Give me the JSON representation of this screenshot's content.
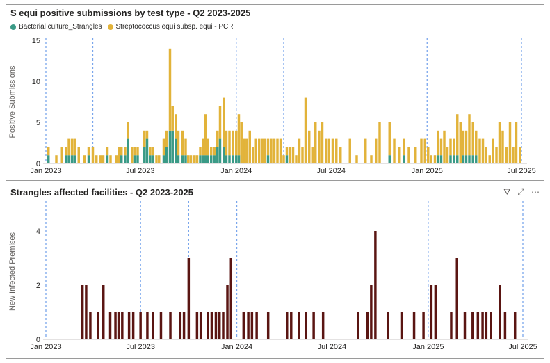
{
  "charts": [
    {
      "title": "S equi positive submissions by test type - Q2 2023-2025",
      "legend": [
        {
          "label": "Bacterial culture_Strangles",
          "color": "#3a9a86"
        },
        {
          "label": "Streptococcus equi subsp. equi - PCR",
          "color": "#e2b33a"
        }
      ]
    },
    {
      "title": "Strangles affected facilities - Q2 2023-2025",
      "toolbar": [
        {
          "name": "filter-icon",
          "glyph": "⛛"
        },
        {
          "name": "focus-mode-icon",
          "glyph": "⤢"
        },
        {
          "name": "more-options-icon",
          "glyph": "⋯"
        }
      ]
    }
  ],
  "chart_data": [
    {
      "type": "bar",
      "stacked": true,
      "title": "S equi positive submissions by test type - Q2 2023-2025",
      "ylabel": "Positive Submissions",
      "xlabel": "",
      "xlim": [
        "2023-01-01",
        "2025-07-01"
      ],
      "ylim": [
        0,
        15
      ],
      "yticks": [
        0,
        5,
        10,
        15
      ],
      "xticks": [
        {
          "date": "2023-01-01",
          "label": "Jan 2023"
        },
        {
          "date": "2023-07-01",
          "label": "Jul 2023"
        },
        {
          "date": "2024-01-01",
          "label": "Jan 2024"
        },
        {
          "date": "2024-07-01",
          "label": "Jul 2024"
        },
        {
          "date": "2025-01-01",
          "label": "Jan 2025"
        },
        {
          "date": "2025-07-01",
          "label": "Jul 2025"
        }
      ],
      "reference_lines": [
        "2023-01-01",
        "2023-04-01",
        "2024-01-01",
        "2024-04-01",
        "2025-01-01",
        "2025-07-01"
      ],
      "legend_position": "top-left",
      "grid": false,
      "x": [
        "2023-01-06",
        "2023-01-21",
        "2023-02-01",
        "2023-02-09",
        "2023-02-14",
        "2023-02-20",
        "2023-02-25",
        "2023-03-05",
        "2023-03-16",
        "2023-03-24",
        "2023-04-01",
        "2023-04-08",
        "2023-04-16",
        "2023-04-21",
        "2023-04-29",
        "2023-05-05",
        "2023-05-16",
        "2023-05-22",
        "2023-05-26",
        "2023-06-02",
        "2023-06-07",
        "2023-06-15",
        "2023-06-20",
        "2023-06-26",
        "2023-07-09",
        "2023-07-14",
        "2023-07-20",
        "2023-07-25",
        "2023-08-01",
        "2023-08-06",
        "2023-08-15",
        "2023-08-20",
        "2023-08-27",
        "2023-09-01",
        "2023-09-07",
        "2023-09-12",
        "2023-09-20",
        "2023-09-26",
        "2023-10-01",
        "2023-10-06",
        "2023-10-13",
        "2023-10-18",
        "2023-10-24",
        "2023-10-29",
        "2023-11-03",
        "2023-11-08",
        "2023-11-14",
        "2023-11-20",
        "2023-11-26",
        "2023-12-01",
        "2023-12-08",
        "2023-12-13",
        "2023-12-19",
        "2023-12-26",
        "2024-01-01",
        "2024-01-06",
        "2024-01-11",
        "2024-01-16",
        "2024-01-21",
        "2024-01-27",
        "2024-02-02",
        "2024-02-08",
        "2024-02-14",
        "2024-02-20",
        "2024-02-25",
        "2024-03-02",
        "2024-03-08",
        "2024-03-14",
        "2024-03-20",
        "2024-03-26",
        "2024-04-01",
        "2024-04-07",
        "2024-04-13",
        "2024-04-19",
        "2024-04-25",
        "2024-05-01",
        "2024-05-07",
        "2024-05-13",
        "2024-05-20",
        "2024-05-26",
        "2024-06-01",
        "2024-06-08",
        "2024-06-14",
        "2024-06-21",
        "2024-06-27",
        "2024-07-04",
        "2024-07-11",
        "2024-07-19",
        "2024-08-06",
        "2024-08-19",
        "2024-09-05",
        "2024-09-16",
        "2024-09-25",
        "2024-10-02",
        "2024-10-21",
        "2024-10-30",
        "2024-11-08",
        "2024-11-18",
        "2024-11-27",
        "2024-12-10",
        "2024-12-21",
        "2024-12-28",
        "2025-01-03",
        "2025-01-09",
        "2025-01-16",
        "2025-01-22",
        "2025-01-28",
        "2025-02-03",
        "2025-02-09",
        "2025-02-15",
        "2025-02-22",
        "2025-02-28",
        "2025-03-06",
        "2025-03-11",
        "2025-03-17",
        "2025-03-23",
        "2025-03-30",
        "2025-04-05",
        "2025-04-12",
        "2025-04-18",
        "2025-04-24",
        "2025-05-01",
        "2025-05-07",
        "2025-05-14",
        "2025-05-20",
        "2025-05-26",
        "2025-06-02",
        "2025-06-09",
        "2025-06-15",
        "2025-06-21",
        "2025-06-28"
      ],
      "series": [
        {
          "name": "Bacterial culture_Strangles",
          "values": [
            1,
            0,
            0,
            1,
            1,
            1,
            1,
            0,
            0,
            1,
            0,
            0,
            0,
            0,
            1,
            0,
            0,
            0,
            1,
            1,
            3,
            0,
            1,
            1,
            2,
            3,
            1,
            1,
            0,
            0,
            1,
            2,
            4,
            4,
            3,
            1,
            1,
            1,
            0,
            0,
            0,
            0,
            1,
            1,
            1,
            1,
            1,
            1,
            2,
            3,
            2,
            1,
            1,
            1,
            1,
            1,
            0,
            0,
            0,
            0,
            0,
            0,
            0,
            0,
            0,
            1,
            0,
            0,
            0,
            0,
            0,
            1,
            0,
            0,
            0,
            0,
            0,
            0,
            0,
            0,
            0,
            0,
            0,
            0,
            0,
            0,
            0,
            0,
            0,
            0,
            0,
            0,
            0,
            0,
            1,
            0,
            0,
            1,
            0,
            0,
            0,
            0,
            0,
            0,
            0,
            1,
            1,
            0,
            0,
            1,
            1,
            1,
            0,
            1,
            1,
            1,
            1,
            1,
            0,
            0,
            0,
            0,
            0,
            0,
            0,
            0,
            0,
            0,
            0,
            0,
            0
          ]
        },
        {
          "name": "Streptococcus equi subsp. equi - PCR",
          "values": [
            1,
            1,
            2,
            1,
            2,
            2,
            2,
            2,
            1,
            1,
            2,
            1,
            1,
            1,
            1,
            1,
            1,
            2,
            1,
            1,
            2,
            2,
            1,
            1,
            2,
            1,
            1,
            1,
            1,
            1,
            2,
            2,
            10,
            3,
            3,
            3,
            3,
            2,
            1,
            1,
            1,
            1,
            1,
            2,
            5,
            2,
            1,
            1,
            2,
            4,
            6,
            3,
            3,
            3,
            3,
            5,
            5,
            3,
            3,
            4,
            2,
            3,
            3,
            3,
            3,
            2,
            3,
            3,
            3,
            3,
            1,
            1,
            2,
            2,
            1,
            3,
            2,
            8,
            4,
            2,
            5,
            4,
            5,
            3,
            3,
            3,
            3,
            2,
            3,
            1,
            3,
            1,
            3,
            5,
            4,
            3,
            2,
            2,
            2,
            2,
            3,
            3,
            2,
            1,
            1,
            3,
            2,
            4,
            2,
            2,
            2,
            5,
            5,
            3,
            3,
            5,
            4,
            3,
            3,
            3,
            2,
            1,
            3,
            2,
            5,
            4,
            2,
            5,
            2,
            5,
            2
          ]
        }
      ]
    },
    {
      "type": "bar",
      "title": "Strangles affected facilities - Q2 2023-2025",
      "ylabel": "New Infected Premises",
      "xlabel": "",
      "xlim": [
        "2023-01-01",
        "2025-07-01"
      ],
      "ylim": [
        0,
        5
      ],
      "yticks": [
        0,
        2,
        4
      ],
      "xticks": [
        {
          "date": "2023-01-01",
          "label": "Jan 2023"
        },
        {
          "date": "2023-07-01",
          "label": "Jul 2023"
        },
        {
          "date": "2024-01-01",
          "label": "Jan 2024"
        },
        {
          "date": "2024-07-01",
          "label": "Jul 2024"
        },
        {
          "date": "2025-01-01",
          "label": "Jan 2025"
        },
        {
          "date": "2025-07-01",
          "label": "Jul 2025"
        }
      ],
      "reference_lines": [
        "2023-01-01",
        "2023-07-01",
        "2023-10-01",
        "2024-01-01",
        "2025-01-01",
        "2025-07-01"
      ],
      "grid": false,
      "color": "#5a1512",
      "x": [
        "2023-03-12",
        "2023-03-19",
        "2023-03-27",
        "2023-04-11",
        "2023-04-21",
        "2023-05-04",
        "2023-05-14",
        "2023-05-20",
        "2023-05-27",
        "2023-06-09",
        "2023-06-17",
        "2023-07-01",
        "2023-07-14",
        "2023-07-25",
        "2023-08-09",
        "2023-08-27",
        "2023-09-15",
        "2023-09-22",
        "2023-10-01",
        "2023-10-17",
        "2023-10-24",
        "2023-11-07",
        "2023-11-14",
        "2023-11-22",
        "2023-11-29",
        "2023-12-06",
        "2023-12-14",
        "2023-12-21",
        "2024-01-14",
        "2024-01-23",
        "2024-01-30",
        "2024-02-08",
        "2024-03-01",
        "2024-04-06",
        "2024-04-14",
        "2024-04-29",
        "2024-05-12",
        "2024-05-27",
        "2024-06-14",
        "2024-08-20",
        "2024-09-07",
        "2024-09-14",
        "2024-09-22",
        "2024-10-16",
        "2024-11-11",
        "2024-12-05",
        "2024-12-23",
        "2025-01-07",
        "2025-01-15",
        "2025-02-14",
        "2025-02-25",
        "2025-03-12",
        "2025-03-27",
        "2025-04-06",
        "2025-04-15",
        "2025-04-22",
        "2025-05-01",
        "2025-05-18",
        "2025-05-28",
        "2025-06-16"
      ],
      "values": [
        2,
        2,
        1,
        1,
        2,
        1,
        1,
        1,
        1,
        1,
        1,
        1,
        1,
        1,
        1,
        1,
        1,
        1,
        3,
        1,
        1,
        1,
        1,
        1,
        1,
        1,
        2,
        3,
        1,
        1,
        1,
        1,
        1,
        1,
        1,
        1,
        1,
        1,
        1,
        1,
        1,
        2,
        4,
        1,
        1,
        1,
        1,
        2,
        2,
        1,
        3,
        1,
        1,
        1,
        1,
        1,
        1,
        2,
        1,
        1
      ]
    }
  ]
}
